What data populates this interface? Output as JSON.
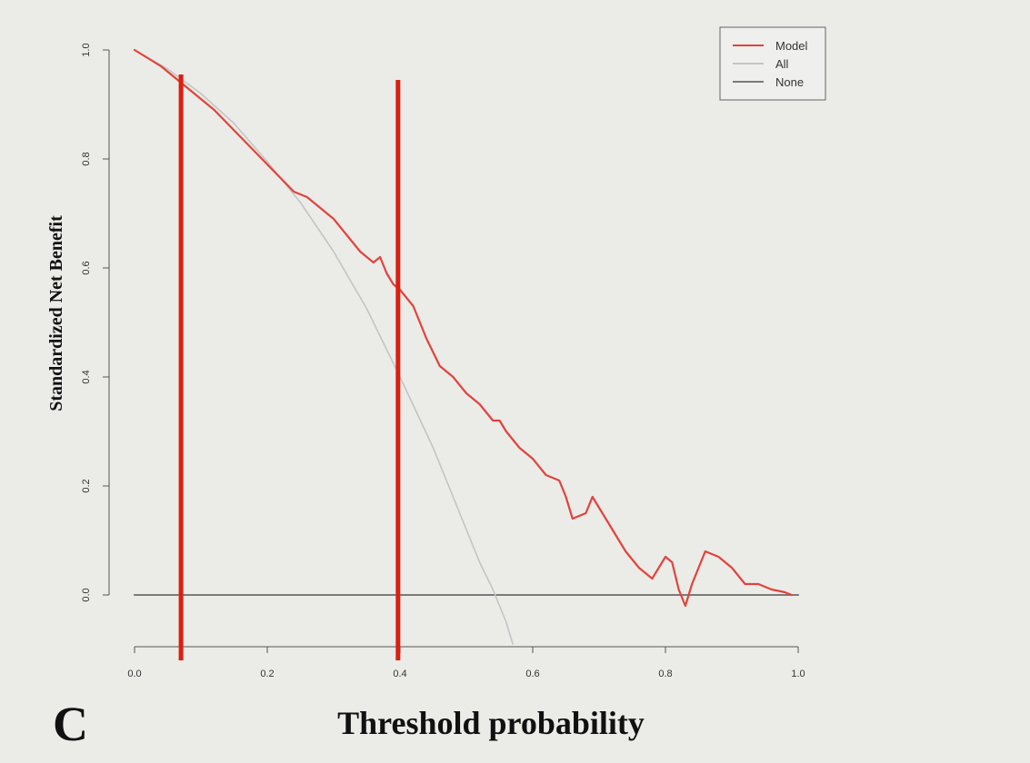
{
  "panel_label": "C",
  "chart_data": {
    "type": "line",
    "xlabel": "Threshold probability",
    "ylabel": "Standardized Net Benefit",
    "xlim": [
      0,
      1
    ],
    "ylim": [
      -0.09,
      1.0
    ],
    "x_ticks": [
      "0.0",
      "0.2",
      "0.4",
      "0.6",
      "0.8",
      "1.0"
    ],
    "x_tick_values": [
      0,
      0.2,
      0.4,
      0.6,
      0.8,
      1.0
    ],
    "y_ticks": [
      "0.0",
      "0.2",
      "0.4",
      "0.6",
      "0.8",
      "1.0"
    ],
    "y_tick_values": [
      0,
      0.2,
      0.4,
      0.6,
      0.8,
      1.0
    ],
    "grid": false,
    "legend_position": "top-right",
    "series": [
      {
        "name": "Model",
        "color": "#e0443c",
        "x": [
          0.0,
          0.04,
          0.08,
          0.12,
          0.16,
          0.2,
          0.24,
          0.26,
          0.28,
          0.3,
          0.32,
          0.34,
          0.36,
          0.37,
          0.38,
          0.39,
          0.4,
          0.42,
          0.44,
          0.46,
          0.47,
          0.48,
          0.5,
          0.52,
          0.54,
          0.55,
          0.56,
          0.58,
          0.6,
          0.62,
          0.64,
          0.65,
          0.66,
          0.68,
          0.69,
          0.7,
          0.72,
          0.74,
          0.76,
          0.78,
          0.8,
          0.81,
          0.82,
          0.83,
          0.84,
          0.85,
          0.86,
          0.88,
          0.9,
          0.92,
          0.94,
          0.96,
          0.98,
          0.99
        ],
        "y": [
          1.0,
          0.97,
          0.93,
          0.89,
          0.84,
          0.79,
          0.74,
          0.73,
          0.71,
          0.69,
          0.66,
          0.63,
          0.61,
          0.62,
          0.59,
          0.57,
          0.56,
          0.53,
          0.47,
          0.42,
          0.41,
          0.4,
          0.37,
          0.35,
          0.32,
          0.32,
          0.3,
          0.27,
          0.25,
          0.22,
          0.21,
          0.18,
          0.14,
          0.15,
          0.18,
          0.16,
          0.12,
          0.08,
          0.05,
          0.03,
          0.07,
          0.06,
          0.01,
          -0.02,
          0.02,
          0.05,
          0.08,
          0.07,
          0.05,
          0.02,
          0.02,
          0.01,
          0.005,
          0.0
        ]
      },
      {
        "name": "All",
        "color": "#c4c4c4",
        "x": [
          0.0,
          0.05,
          0.1,
          0.15,
          0.2,
          0.25,
          0.3,
          0.35,
          0.4,
          0.45,
          0.5,
          0.52,
          0.54,
          0.56,
          0.57
        ],
        "y": [
          1.0,
          0.965,
          0.92,
          0.865,
          0.795,
          0.72,
          0.63,
          0.525,
          0.4,
          0.27,
          0.12,
          0.06,
          0.01,
          -0.05,
          -0.09
        ]
      },
      {
        "name": "None",
        "color": "#7a7a7a",
        "x": [
          0.0,
          1.0
        ],
        "y": [
          0.0,
          0.0
        ]
      }
    ],
    "vertical_markers": {
      "color": "#dd1e10",
      "lines": [
        {
          "x": 0.07,
          "y_top": 0.955,
          "y_bottom": -0.12
        },
        {
          "x": 0.397,
          "y_top": 0.945,
          "y_bottom": -0.12
        }
      ]
    }
  }
}
